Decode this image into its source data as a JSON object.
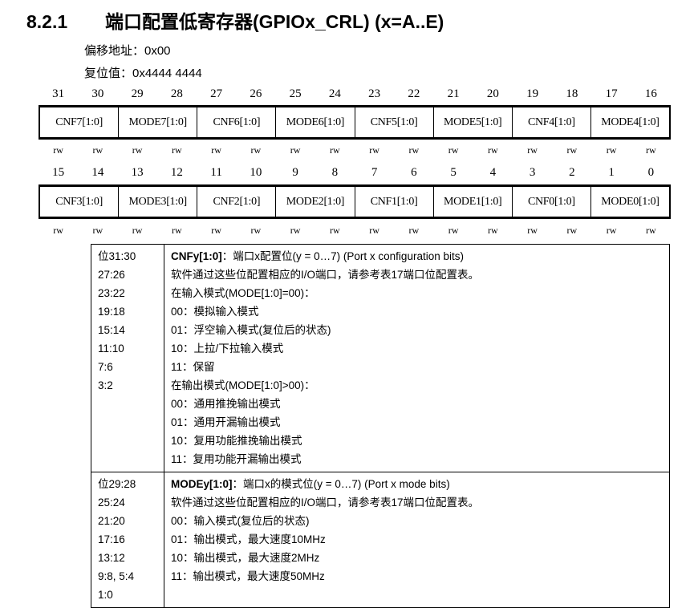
{
  "section": {
    "number": "8.2.1",
    "title": "端口配置低寄存器(GPIOx_CRL) (x=A..E)"
  },
  "offset": "偏移地址：0x00",
  "reset": "复位值：0x4444 4444",
  "high": {
    "bits": [
      "31",
      "30",
      "29",
      "28",
      "27",
      "26",
      "25",
      "24",
      "23",
      "22",
      "21",
      "20",
      "19",
      "18",
      "17",
      "16"
    ],
    "fields": [
      "CNF7[1:0]",
      "MODE7[1:0]",
      "CNF6[1:0]",
      "MODE6[1:0]",
      "CNF5[1:0]",
      "MODE5[1:0]",
      "CNF4[1:0]",
      "MODE4[1:0]"
    ],
    "access": [
      "rw",
      "rw",
      "rw",
      "rw",
      "rw",
      "rw",
      "rw",
      "rw",
      "rw",
      "rw",
      "rw",
      "rw",
      "rw",
      "rw",
      "rw",
      "rw"
    ]
  },
  "low": {
    "bits": [
      "15",
      "14",
      "13",
      "12",
      "11",
      "10",
      "9",
      "8",
      "7",
      "6",
      "5",
      "4",
      "3",
      "2",
      "1",
      "0"
    ],
    "fields": [
      "CNF3[1:0]",
      "MODE3[1:0]",
      "CNF2[1:0]",
      "MODE2[1:0]",
      "CNF1[1:0]",
      "MODE1[1:0]",
      "CNF0[1:0]",
      "MODE0[1:0]"
    ],
    "access": [
      "rw",
      "rw",
      "rw",
      "rw",
      "rw",
      "rw",
      "rw",
      "rw",
      "rw",
      "rw",
      "rw",
      "rw",
      "rw",
      "rw",
      "rw",
      "rw"
    ]
  },
  "descriptions": [
    {
      "bits": [
        "位31:30",
        "27:26",
        "23:22",
        "19:18",
        "15:14",
        "11:10",
        "7:6",
        "3:2"
      ],
      "name": "CNFy[1:0]",
      "heading": "：端口x配置位(y = 0…7) (Port x configuration bits)",
      "lines": [
        "软件通过这些位配置相应的I/O端口，请参考表17端口位配置表。",
        "在输入模式(MODE[1:0]=00)：",
        "00：模拟输入模式",
        "01：浮空输入模式(复位后的状态)",
        "10：上拉/下拉输入模式",
        "11：保留",
        "在输出模式(MODE[1:0]>00)：",
        "00：通用推挽输出模式",
        "01：通用开漏输出模式",
        "10：复用功能推挽输出模式",
        "11：复用功能开漏输出模式"
      ]
    },
    {
      "bits": [
        "位29:28",
        "25:24",
        "21:20",
        "17:16",
        "13:12",
        "9:8, 5:4",
        "1:0"
      ],
      "name": "MODEy[1:0]",
      "heading": "：端口x的模式位(y = 0…7) (Port x mode bits)",
      "lines": [
        "软件通过这些位配置相应的I/O端口，请参考表17端口位配置表。",
        "00：输入模式(复位后的状态)",
        "01：输出模式，最大速度10MHz",
        "10：输出模式，最大速度2MHz",
        "11：输出模式，最大速度50MHz"
      ]
    }
  ]
}
